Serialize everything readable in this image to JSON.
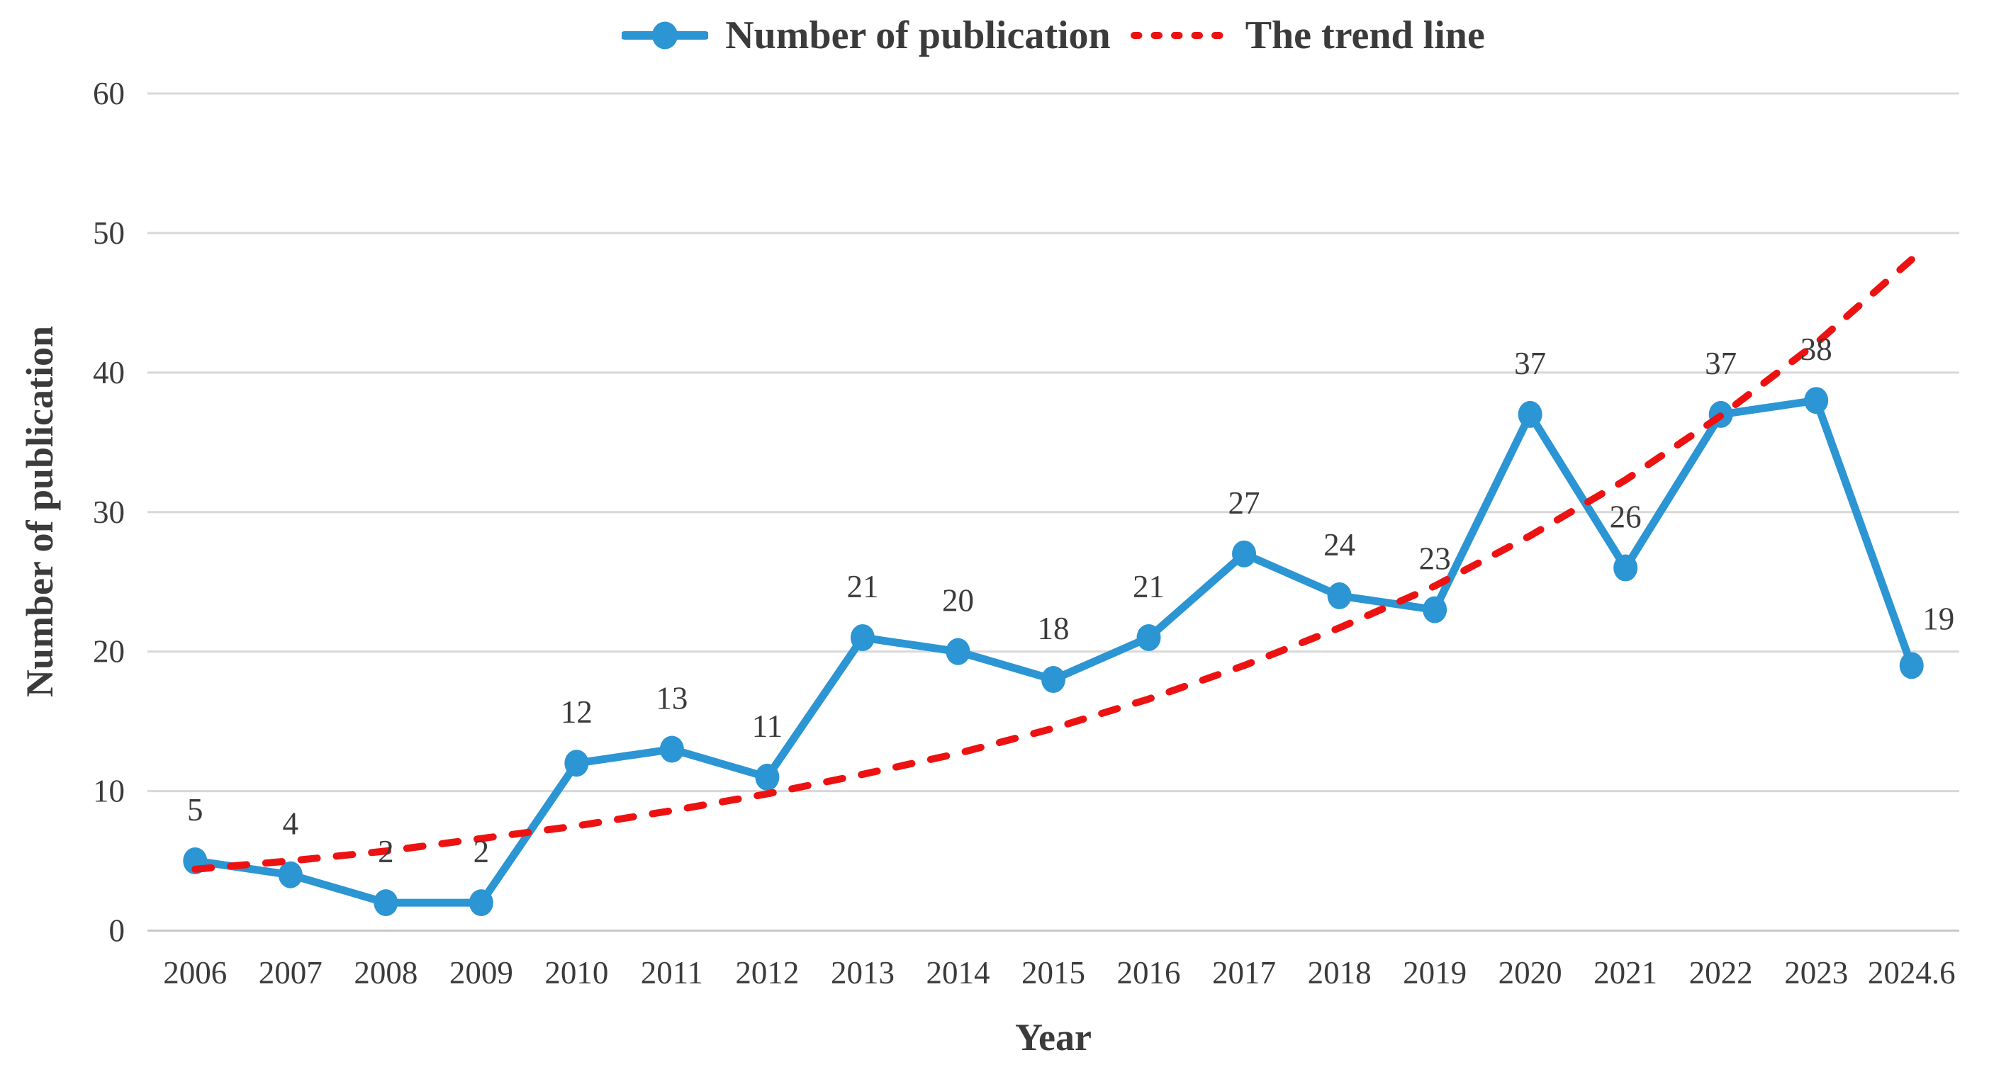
{
  "legend": {
    "series_label": "Number of publication",
    "trend_label": "The trend line"
  },
  "colors": {
    "series_blue": "#2C95D3",
    "trend_red": "#ED1212",
    "gridline": "#D8D8D8",
    "axis_line": "#C8C8C8",
    "text": "#3B3B3B"
  },
  "chart_data": {
    "type": "line",
    "title": "",
    "xlabel": "Year",
    "ylabel": "Number of publication",
    "categories": [
      "2006",
      "2007",
      "2008",
      "2009",
      "2010",
      "2011",
      "2012",
      "2013",
      "2014",
      "2015",
      "2016",
      "2017",
      "2018",
      "2019",
      "2020",
      "2021",
      "2022",
      "2023",
      "2024.6"
    ],
    "series": [
      {
        "name": "Number of publication",
        "type": "line-with-markers",
        "color": "#2C95D3",
        "values": [
          5,
          4,
          2,
          2,
          12,
          13,
          11,
          21,
          20,
          18,
          21,
          27,
          24,
          23,
          37,
          26,
          37,
          38,
          19
        ],
        "data_labels": [
          5,
          4,
          2,
          2,
          12,
          13,
          11,
          21,
          20,
          18,
          21,
          27,
          24,
          23,
          37,
          26,
          37,
          38,
          19
        ]
      },
      {
        "name": "The trend line",
        "type": "exponential-trendline",
        "line_style": "dashed",
        "color": "#ED1212",
        "values": [
          4.4,
          5.0,
          5.7,
          6.6,
          7.5,
          8.6,
          9.8,
          11.2,
          12.7,
          14.5,
          16.6,
          19.0,
          21.7,
          24.7,
          28.3,
          32.3,
          36.9,
          42.1,
          48.1
        ]
      }
    ],
    "ylim": [
      0,
      60
    ],
    "yticks": [
      0,
      10,
      20,
      30,
      40,
      50,
      60
    ],
    "grid": "horizontal",
    "legend_position": "top-center",
    "label_offsets": {
      "18": [
        38,
        6
      ]
    }
  }
}
